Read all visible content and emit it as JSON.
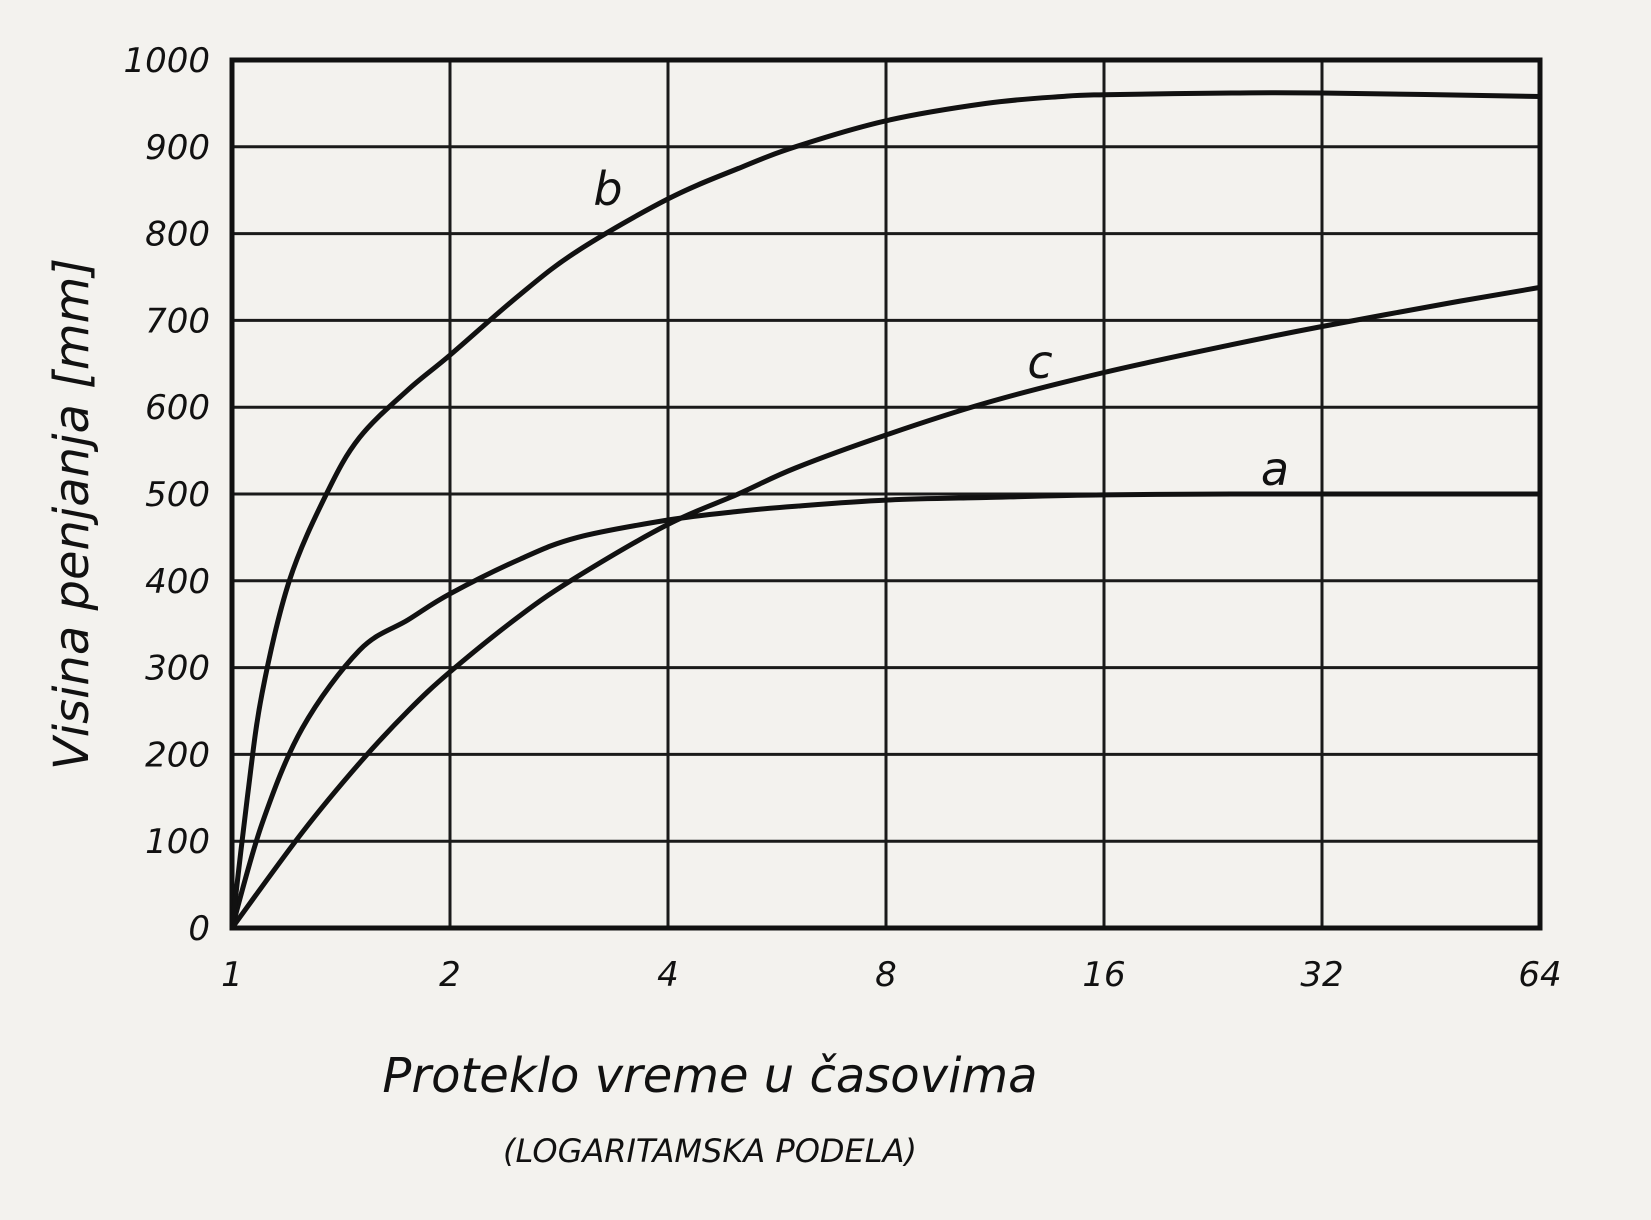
{
  "chart_data": {
    "type": "line",
    "title": "",
    "xlabel": "Proteklo vreme u časovima",
    "xlabel_sub": "(LOGARITAMSKA PODELA)",
    "ylabel": "Visina penjanja [mm]",
    "x_scale": "log2",
    "xlim": [
      1,
      64
    ],
    "ylim": [
      0,
      1000
    ],
    "x_ticks": [
      "1",
      "2",
      "4",
      "8",
      "16",
      "32",
      "64"
    ],
    "y_ticks": [
      "0",
      "100",
      "200",
      "300",
      "400",
      "500",
      "600",
      "700",
      "800",
      "900",
      "1000"
    ],
    "grid": true,
    "series": [
      {
        "name": "a",
        "x": [
          1,
          1.1,
          1.25,
          1.5,
          1.75,
          2,
          2.5,
          3,
          4,
          5,
          6,
          8,
          11,
          16,
          24,
          32,
          64
        ],
        "y": [
          0,
          120,
          230,
          320,
          355,
          385,
          425,
          450,
          470,
          480,
          486,
          493,
          496,
          499,
          500,
          500,
          500
        ]
      },
      {
        "name": "b",
        "x": [
          1,
          1.05,
          1.1,
          1.2,
          1.35,
          1.5,
          1.75,
          2,
          2.5,
          3,
          4,
          5,
          6,
          8,
          11,
          14,
          16,
          24,
          32,
          64
        ],
        "y": [
          0,
          150,
          270,
          400,
          500,
          565,
          620,
          660,
          730,
          780,
          840,
          875,
          900,
          930,
          950,
          958,
          960,
          962,
          962,
          958
        ]
      },
      {
        "name": "c",
        "x": [
          1,
          1.25,
          1.5,
          1.75,
          2,
          2.5,
          3,
          4,
          5,
          6,
          8,
          11,
          16,
          24,
          32,
          48,
          64
        ],
        "y": [
          0,
          110,
          190,
          250,
          295,
          360,
          405,
          465,
          500,
          530,
          568,
          605,
          640,
          672,
          693,
          720,
          738
        ]
      }
    ]
  }
}
